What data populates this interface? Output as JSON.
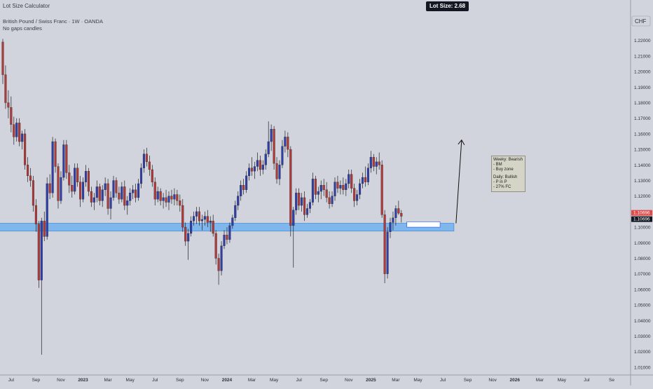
{
  "header": {
    "indicator": "Lot Size Calculator",
    "symbol_line": "British Pound / Swiss Franc · 1W · OANDA",
    "gaps_line": "No gaps candles"
  },
  "lot_size_badge": "Lot Size: 2.68",
  "annotation": {
    "weekly_title": "Weeky: Bearish",
    "weekly_lines": [
      "- BM",
      "- Buy zone"
    ],
    "daily_title": "Daily: Bullish",
    "daily_lines": [
      "- P in P",
      "- 27% FC"
    ]
  },
  "colors": {
    "background": "#d1d4dc",
    "up_body": "#2f3ea8",
    "down_body": "#b03a3a",
    "zone_fill": "#7fb7ec",
    "zone_border": "#4a90d9",
    "price_label_red": "#e04a4a",
    "price_label_dark": "#131722"
  },
  "chart_data": {
    "type": "candlestick",
    "currency": "CHF",
    "ylim": [
      1.005,
      1.237
    ],
    "y_ticks": [
      "1.22000",
      "1.21000",
      "1.20000",
      "1.19000",
      "1.18000",
      "1.17000",
      "1.16000",
      "1.15000",
      "1.14000",
      "1.13000",
      "1.12000",
      "1.11000",
      "1.10000",
      "1.09000",
      "1.08000",
      "1.07000",
      "1.06000",
      "1.05000",
      "1.04000",
      "1.03000",
      "1.02000",
      "1.01000"
    ],
    "y_tick_values": [
      1.22,
      1.21,
      1.2,
      1.19,
      1.18,
      1.17,
      1.16,
      1.15,
      1.14,
      1.13,
      1.12,
      1.11,
      1.1,
      1.09,
      1.08,
      1.07,
      1.06,
      1.05,
      1.04,
      1.03,
      1.02,
      1.01
    ],
    "x_labels": [
      "Jul",
      "Sep",
      "Nov",
      "2023",
      "Mar",
      "May",
      "Jul",
      "Sep",
      "Nov",
      "2024",
      "Mar",
      "May",
      "Jul",
      "Sep",
      "Nov",
      "2025",
      "Mar",
      "May",
      "Jul",
      "Sep",
      "Nov",
      "2026",
      "Mar",
      "May",
      "Jul",
      "Se"
    ],
    "x_label_index": [
      3,
      12,
      21,
      29,
      38,
      46,
      55,
      64,
      73,
      81,
      90,
      98,
      107,
      116,
      125,
      133,
      142,
      150,
      159,
      168,
      177,
      185,
      194,
      202,
      211,
      220
    ],
    "x_label_bold": [
      false,
      false,
      false,
      true,
      false,
      false,
      false,
      false,
      false,
      true,
      false,
      false,
      false,
      false,
      false,
      true,
      false,
      false,
      false,
      false,
      false,
      true,
      false,
      false,
      false,
      false
    ],
    "current_price_labels": [
      "1.10696",
      "1.10696"
    ],
    "current_price": 1.10696,
    "zone": {
      "y_low": 1.0975,
      "y_high": 1.1025,
      "x_start_index": -2,
      "x_end_index": 163
    },
    "small_box": {
      "y_low": 1.1,
      "y_high": 1.1035,
      "x_start_index": 146,
      "x_end_index": 158
    },
    "arrow": {
      "x_index": 163,
      "y_from": 1.1025,
      "y_to": 1.156
    },
    "candles": [
      [
        1.219,
        1.221,
        1.192,
        1.198
      ],
      [
        1.198,
        1.204,
        1.176,
        1.18
      ],
      [
        1.18,
        1.188,
        1.17,
        1.177
      ],
      [
        1.177,
        1.184,
        1.161,
        1.166
      ],
      [
        1.166,
        1.171,
        1.153,
        1.158
      ],
      [
        1.158,
        1.17,
        1.155,
        1.167
      ],
      [
        1.167,
        1.17,
        1.152,
        1.155
      ],
      [
        1.155,
        1.162,
        1.15,
        1.16
      ],
      [
        1.16,
        1.163,
        1.137,
        1.14
      ],
      [
        1.14,
        1.145,
        1.129,
        1.133
      ],
      [
        1.133,
        1.138,
        1.126,
        1.13
      ],
      [
        1.13,
        1.133,
        1.11,
        1.114
      ],
      [
        1.114,
        1.118,
        1.097,
        1.102
      ],
      [
        1.102,
        1.104,
        1.061,
        1.066
      ],
      [
        1.066,
        1.106,
        1.018,
        1.104
      ],
      [
        1.104,
        1.11,
        1.091,
        1.094
      ],
      [
        1.094,
        1.132,
        1.092,
        1.128
      ],
      [
        1.128,
        1.134,
        1.118,
        1.122
      ],
      [
        1.122,
        1.158,
        1.119,
        1.155
      ],
      [
        1.155,
        1.157,
        1.135,
        1.139
      ],
      [
        1.139,
        1.141,
        1.112,
        1.117
      ],
      [
        1.117,
        1.136,
        1.115,
        1.132
      ],
      [
        1.132,
        1.156,
        1.13,
        1.153
      ],
      [
        1.153,
        1.156,
        1.131,
        1.135
      ],
      [
        1.135,
        1.14,
        1.122,
        1.127
      ],
      [
        1.127,
        1.133,
        1.119,
        1.123
      ],
      [
        1.123,
        1.141,
        1.121,
        1.138
      ],
      [
        1.138,
        1.141,
        1.126,
        1.129
      ],
      [
        1.129,
        1.133,
        1.113,
        1.118
      ],
      [
        1.118,
        1.132,
        1.116,
        1.129
      ],
      [
        1.129,
        1.14,
        1.126,
        1.136
      ],
      [
        1.136,
        1.138,
        1.12,
        1.123
      ],
      [
        1.123,
        1.126,
        1.113,
        1.116
      ],
      [
        1.116,
        1.122,
        1.111,
        1.119
      ],
      [
        1.119,
        1.13,
        1.116,
        1.126
      ],
      [
        1.126,
        1.128,
        1.114,
        1.117
      ],
      [
        1.117,
        1.127,
        1.113,
        1.124
      ],
      [
        1.124,
        1.132,
        1.12,
        1.128
      ],
      [
        1.128,
        1.131,
        1.108,
        1.112
      ],
      [
        1.112,
        1.123,
        1.105,
        1.119
      ],
      [
        1.119,
        1.133,
        1.117,
        1.13
      ],
      [
        1.13,
        1.132,
        1.119,
        1.122
      ],
      [
        1.122,
        1.126,
        1.115,
        1.118
      ],
      [
        1.118,
        1.129,
        1.116,
        1.126
      ],
      [
        1.126,
        1.13,
        1.111,
        1.114
      ],
      [
        1.114,
        1.12,
        1.108,
        1.117
      ],
      [
        1.117,
        1.125,
        1.114,
        1.122
      ],
      [
        1.122,
        1.127,
        1.118,
        1.124
      ],
      [
        1.124,
        1.128,
        1.116,
        1.119
      ],
      [
        1.119,
        1.131,
        1.117,
        1.128
      ],
      [
        1.128,
        1.141,
        1.125,
        1.138
      ],
      [
        1.138,
        1.15,
        1.135,
        1.147
      ],
      [
        1.147,
        1.151,
        1.139,
        1.142
      ],
      [
        1.142,
        1.146,
        1.133,
        1.137
      ],
      [
        1.137,
        1.14,
        1.126,
        1.129
      ],
      [
        1.129,
        1.132,
        1.114,
        1.118
      ],
      [
        1.118,
        1.126,
        1.116,
        1.123
      ],
      [
        1.123,
        1.125,
        1.114,
        1.117
      ],
      [
        1.117,
        1.122,
        1.112,
        1.119
      ],
      [
        1.119,
        1.124,
        1.113,
        1.116
      ],
      [
        1.116,
        1.123,
        1.111,
        1.12
      ],
      [
        1.12,
        1.124,
        1.115,
        1.118
      ],
      [
        1.118,
        1.125,
        1.114,
        1.121
      ],
      [
        1.121,
        1.124,
        1.114,
        1.117
      ],
      [
        1.117,
        1.121,
        1.11,
        1.114
      ],
      [
        1.114,
        1.118,
        1.097,
        1.1
      ],
      [
        1.1,
        1.103,
        1.088,
        1.091
      ],
      [
        1.091,
        1.099,
        1.079,
        1.096
      ],
      [
        1.096,
        1.107,
        1.094,
        1.104
      ],
      [
        1.104,
        1.11,
        1.101,
        1.107
      ],
      [
        1.107,
        1.113,
        1.102,
        1.11
      ],
      [
        1.11,
        1.113,
        1.101,
        1.104
      ],
      [
        1.104,
        1.108,
        1.098,
        1.105
      ],
      [
        1.105,
        1.11,
        1.101,
        1.107
      ],
      [
        1.107,
        1.111,
        1.1,
        1.103
      ],
      [
        1.103,
        1.107,
        1.097,
        1.104
      ],
      [
        1.104,
        1.108,
        1.094,
        1.096
      ],
      [
        1.096,
        1.098,
        1.076,
        1.08
      ],
      [
        1.08,
        1.083,
        1.063,
        1.072
      ],
      [
        1.072,
        1.091,
        1.069,
        1.088
      ],
      [
        1.088,
        1.098,
        1.086,
        1.095
      ],
      [
        1.095,
        1.1,
        1.089,
        1.092
      ],
      [
        1.092,
        1.103,
        1.09,
        1.101
      ],
      [
        1.101,
        1.108,
        1.099,
        1.106
      ],
      [
        1.106,
        1.117,
        1.104,
        1.114
      ],
      [
        1.114,
        1.123,
        1.111,
        1.12
      ],
      [
        1.12,
        1.13,
        1.117,
        1.127
      ],
      [
        1.127,
        1.131,
        1.121,
        1.124
      ],
      [
        1.124,
        1.136,
        1.122,
        1.133
      ],
      [
        1.133,
        1.141,
        1.13,
        1.138
      ],
      [
        1.138,
        1.145,
        1.133,
        1.136
      ],
      [
        1.136,
        1.142,
        1.131,
        1.139
      ],
      [
        1.139,
        1.148,
        1.136,
        1.143
      ],
      [
        1.143,
        1.146,
        1.133,
        1.137
      ],
      [
        1.137,
        1.143,
        1.134,
        1.14
      ],
      [
        1.14,
        1.15,
        1.137,
        1.147
      ],
      [
        1.147,
        1.168,
        1.145,
        1.155
      ],
      [
        1.155,
        1.166,
        1.149,
        1.163
      ],
      [
        1.163,
        1.165,
        1.137,
        1.141
      ],
      [
        1.141,
        1.145,
        1.128,
        1.131
      ],
      [
        1.131,
        1.143,
        1.127,
        1.14
      ],
      [
        1.14,
        1.156,
        1.138,
        1.152
      ],
      [
        1.152,
        1.162,
        1.148,
        1.158
      ],
      [
        1.158,
        1.161,
        1.145,
        1.15
      ],
      [
        1.15,
        1.152,
        1.094,
        1.101
      ],
      [
        1.101,
        1.113,
        1.074,
        1.111
      ],
      [
        1.111,
        1.125,
        1.108,
        1.122
      ],
      [
        1.122,
        1.125,
        1.111,
        1.114
      ],
      [
        1.114,
        1.122,
        1.11,
        1.119
      ],
      [
        1.119,
        1.123,
        1.104,
        1.108
      ],
      [
        1.108,
        1.115,
        1.106,
        1.112
      ],
      [
        1.112,
        1.118,
        1.109,
        1.116
      ],
      [
        1.116,
        1.135,
        1.114,
        1.131
      ],
      [
        1.131,
        1.133,
        1.118,
        1.121
      ],
      [
        1.121,
        1.126,
        1.116,
        1.123
      ],
      [
        1.123,
        1.13,
        1.118,
        1.127
      ],
      [
        1.127,
        1.131,
        1.12,
        1.124
      ],
      [
        1.124,
        1.129,
        1.116,
        1.119
      ],
      [
        1.119,
        1.123,
        1.112,
        1.115
      ],
      [
        1.115,
        1.123,
        1.113,
        1.12
      ],
      [
        1.12,
        1.132,
        1.117,
        1.129
      ],
      [
        1.129,
        1.133,
        1.122,
        1.125
      ],
      [
        1.125,
        1.13,
        1.121,
        1.127
      ],
      [
        1.127,
        1.132,
        1.121,
        1.124
      ],
      [
        1.124,
        1.131,
        1.12,
        1.128
      ],
      [
        1.128,
        1.137,
        1.125,
        1.134
      ],
      [
        1.134,
        1.137,
        1.122,
        1.125
      ],
      [
        1.125,
        1.128,
        1.113,
        1.117
      ],
      [
        1.117,
        1.124,
        1.114,
        1.121
      ],
      [
        1.121,
        1.131,
        1.118,
        1.128
      ],
      [
        1.128,
        1.135,
        1.125,
        1.132
      ],
      [
        1.132,
        1.139,
        1.126,
        1.129
      ],
      [
        1.129,
        1.141,
        1.127,
        1.138
      ],
      [
        1.138,
        1.149,
        1.135,
        1.145
      ],
      [
        1.145,
        1.147,
        1.136,
        1.139
      ],
      [
        1.139,
        1.145,
        1.134,
        1.142
      ],
      [
        1.142,
        1.148,
        1.137,
        1.14
      ],
      [
        1.14,
        1.143,
        1.106,
        1.108
      ],
      [
        1.108,
        1.111,
        1.064,
        1.07
      ],
      [
        1.07,
        1.1,
        1.067,
        1.097
      ],
      [
        1.097,
        1.106,
        1.093,
        1.103
      ],
      [
        1.103,
        1.11,
        1.098,
        1.106
      ],
      [
        1.106,
        1.114,
        1.101,
        1.112
      ],
      [
        1.112,
        1.117,
        1.108,
        1.109
      ],
      [
        1.109,
        1.111,
        1.103,
        1.107
      ]
    ]
  }
}
